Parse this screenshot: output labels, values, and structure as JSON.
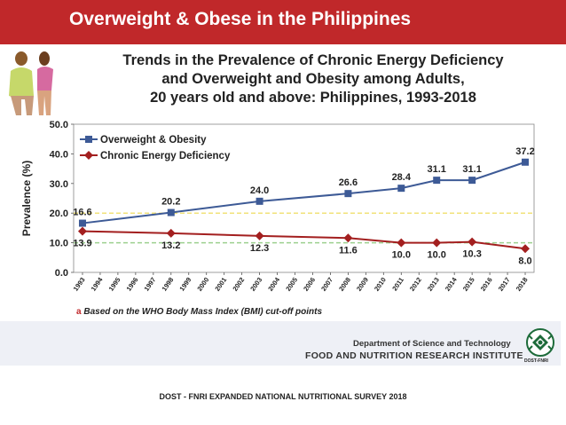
{
  "banner": {
    "title": "Overweight & Obese in the Philippines"
  },
  "chart_title_lines": [
    "Trends in the Prevalence of Chronic Energy Deficiency",
    "and Overweight and Obesity among Adults,",
    "20 years old and above: Philippines, 1993-2018"
  ],
  "chart_data": {
    "type": "line",
    "ylabel": "Prevalence (%)",
    "ylim": [
      0,
      50
    ],
    "yticks": [
      0,
      10,
      20,
      30,
      40,
      50
    ],
    "ytick_labels": [
      "0.0",
      "10.0",
      "20.0",
      "30.0",
      "40.0",
      "50.0"
    ],
    "x_categories": [
      "1993",
      "1994",
      "1995",
      "1996",
      "1997",
      "1998",
      "1999",
      "2000",
      "2001",
      "2002",
      "2003",
      "2004",
      "2005",
      "2006",
      "2007",
      "2008",
      "2009",
      "2010",
      "2011",
      "2012",
      "2013",
      "2014",
      "2015",
      "2016",
      "2017",
      "2018"
    ],
    "reference_lines": [
      {
        "value": 20,
        "color": "#f1e27a"
      },
      {
        "value": 10,
        "color": "#9cd08f"
      }
    ],
    "legend_position": "top-left",
    "series": [
      {
        "name": "Overweight & Obesity",
        "color": "#3d5a96",
        "marker": "square",
        "x": [
          "1993",
          "1998",
          "2003",
          "2008",
          "2011",
          "2013",
          "2015",
          "2018"
        ],
        "values": [
          16.6,
          20.2,
          24.0,
          26.6,
          28.4,
          31.1,
          31.1,
          37.2
        ],
        "labels": [
          "16.6",
          "20.2",
          "24.0",
          "26.6",
          "28.4",
          "31.1",
          "31.1",
          "37.2"
        ]
      },
      {
        "name": "Chronic Energy Deficiency",
        "color": "#a31f1f",
        "marker": "diamond",
        "x": [
          "1993",
          "1998",
          "2003",
          "2008",
          "2011",
          "2013",
          "2015",
          "2018"
        ],
        "values": [
          13.9,
          13.2,
          12.3,
          11.6,
          10.0,
          10.0,
          10.3,
          8.0
        ],
        "labels": [
          "13.9",
          "13.2",
          "12.3",
          "11.6",
          "10.0",
          "10.0",
          "10.3",
          "8.0"
        ]
      }
    ]
  },
  "footnote": {
    "mark": "a",
    "text": "Based on the WHO Body Mass Index (BMI) cut-off points"
  },
  "agency": {
    "department": "Department of Science and Technology",
    "institute": "FOOD AND NUTRITION RESEARCH INSTITUTE",
    "logo_caption": "DOST-FNRI"
  },
  "source": "DOST - FNRI EXPANDED NATIONAL NUTRITIONAL SURVEY 2018"
}
